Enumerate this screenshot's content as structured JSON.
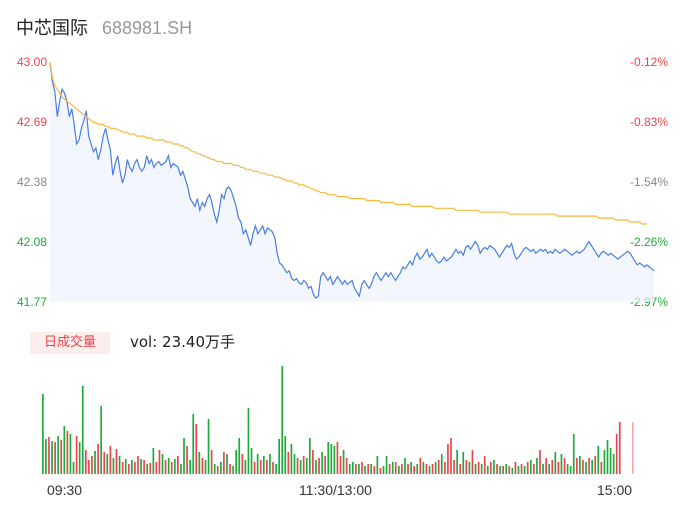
{
  "header": {
    "name": "中芯国际",
    "code": "688981.SH"
  },
  "volume": {
    "tab_label": "日成交量",
    "vol_prefix": "vol: ",
    "vol_value": "23.40万手"
  },
  "colors": {
    "price": "#4a7fe0",
    "avg": "#f5b942",
    "up": "#e8454f",
    "down": "#1faa3c",
    "neutral": "#888888"
  },
  "chart_data": {
    "type": "line",
    "y_left_ticks": [
      "43.00",
      "42.69",
      "42.38",
      "42.08",
      "41.77"
    ],
    "y_right_ticks": [
      "-0.12%",
      "-0.83%",
      "-1.54%",
      "-2.26%",
      "-2.97%"
    ],
    "y_tick_colors": [
      "up",
      "up",
      "neutral",
      "down",
      "down"
    ],
    "ylim": [
      41.77,
      43.0
    ],
    "x_ticks": [
      "09:30",
      "11:30/13:00",
      "15:00"
    ],
    "series": [
      {
        "key": "price",
        "values": [
          43.0,
          42.9,
          42.85,
          42.72,
          42.8,
          42.86,
          42.84,
          42.8,
          42.72,
          42.76,
          42.68,
          42.58,
          42.6,
          42.66,
          42.7,
          42.75,
          42.62,
          42.58,
          42.54,
          42.56,
          42.5,
          42.55,
          42.62,
          42.66,
          42.6,
          42.55,
          42.42,
          42.48,
          42.52,
          42.44,
          42.38,
          42.42,
          42.5,
          42.46,
          42.44,
          42.48,
          42.5,
          42.46,
          42.44,
          42.46,
          42.52,
          42.48,
          42.5,
          42.46,
          42.48,
          42.49,
          42.47,
          42.48,
          42.49,
          42.52,
          42.46,
          42.48,
          42.47,
          42.46,
          42.42,
          42.44,
          42.4,
          42.36,
          42.3,
          42.28,
          42.26,
          42.3,
          42.24,
          42.28,
          42.26,
          42.3,
          42.32,
          42.28,
          42.22,
          42.18,
          42.24,
          42.32,
          42.3,
          42.35,
          42.36,
          42.34,
          42.3,
          42.26,
          42.2,
          42.18,
          42.12,
          42.14,
          42.1,
          42.06,
          42.12,
          42.16,
          42.12,
          42.14,
          42.16,
          42.12,
          42.15,
          42.14,
          42.13,
          42.1,
          42.02,
          41.97,
          41.96,
          41.94,
          41.92,
          41.93,
          41.89,
          41.88,
          41.89,
          41.87,
          41.86,
          41.88,
          41.87,
          41.84,
          41.85,
          41.81,
          41.79,
          41.8,
          41.9,
          41.92,
          41.9,
          41.88,
          41.9,
          41.86,
          41.88,
          41.9,
          41.88,
          41.86,
          41.88,
          41.86,
          41.87,
          41.88,
          41.84,
          41.82,
          41.8,
          41.86,
          41.88,
          41.86,
          41.84,
          41.86,
          41.9,
          41.92,
          41.9,
          41.88,
          41.9,
          41.92,
          41.9,
          41.92,
          41.9,
          41.88,
          41.9,
          41.92,
          41.95,
          41.94,
          41.96,
          41.98,
          41.96,
          42.0,
          42.02,
          41.99,
          42.0,
          42.02,
          42.04,
          42.0,
          42.02,
          42.0,
          41.98,
          41.97,
          41.98,
          42.0,
          41.98,
          41.99,
          42.0,
          42.02,
          42.04,
          42.02,
          42.03,
          42.01,
          42.05,
          42.06,
          42.04,
          42.06,
          42.08,
          42.06,
          42.02,
          42.04,
          42.05,
          42.04,
          42.06,
          42.05,
          42.04,
          42.02,
          42.0,
          42.02,
          42.04,
          42.06,
          42.05,
          42.07,
          42.02,
          41.99,
          42.0,
          42.02,
          42.04,
          42.05,
          42.04,
          42.03,
          42.04,
          42.02,
          42.03,
          42.04,
          42.03,
          42.04,
          42.02,
          42.03,
          42.02,
          42.04,
          42.03,
          42.02,
          42.03,
          42.04,
          42.03,
          42.02,
          42.01,
          42.02,
          42.03,
          42.02,
          42.03,
          42.04,
          42.06,
          42.08,
          42.06,
          42.04,
          42.02,
          42.0,
          42.02,
          42.03,
          42.02,
          42.01,
          42.02,
          42.01,
          42.0,
          41.99,
          42.0,
          42.01,
          42.02,
          42.03,
          42.02,
          42.0,
          41.98,
          41.96,
          41.97,
          41.96,
          41.95,
          41.96,
          41.95,
          41.94,
          41.93
        ]
      },
      {
        "key": "avg",
        "values": [
          43.0,
          42.92,
          42.88,
          42.86,
          42.84,
          42.82,
          42.81,
          42.8,
          42.79,
          42.78,
          42.77,
          42.76,
          42.75,
          42.74,
          42.73,
          42.72,
          42.71,
          42.7,
          42.69,
          42.69,
          42.68,
          42.68,
          42.68,
          42.67,
          42.67,
          42.66,
          42.66,
          42.66,
          42.65,
          42.65,
          42.64,
          42.64,
          42.64,
          42.63,
          42.63,
          42.63,
          42.62,
          42.62,
          42.62,
          42.62,
          42.61,
          42.61,
          42.61,
          42.6,
          42.6,
          42.6,
          42.6,
          42.6,
          42.59,
          42.59,
          42.59,
          42.58,
          42.58,
          42.58,
          42.57,
          42.57,
          42.56,
          42.56,
          42.55,
          42.54,
          42.54,
          42.53,
          42.53,
          42.52,
          42.52,
          42.51,
          42.51,
          42.5,
          42.5,
          42.49,
          42.49,
          42.49,
          42.48,
          42.48,
          42.48,
          42.48,
          42.47,
          42.47,
          42.47,
          42.46,
          42.46,
          42.45,
          42.45,
          42.45,
          42.44,
          42.44,
          42.44,
          42.43,
          42.43,
          42.43,
          42.42,
          42.42,
          42.42,
          42.41,
          42.41,
          42.41,
          42.4,
          42.4,
          42.39,
          42.39,
          42.39,
          42.38,
          42.38,
          42.37,
          42.37,
          42.37,
          42.36,
          42.36,
          42.35,
          42.35,
          42.34,
          42.34,
          42.33,
          42.33,
          42.33,
          42.32,
          42.32,
          42.32,
          42.32,
          42.31,
          42.31,
          42.31,
          42.31,
          42.31,
          42.3,
          42.3,
          42.3,
          42.3,
          42.3,
          42.3,
          42.3,
          42.29,
          42.29,
          42.29,
          42.29,
          42.29,
          42.29,
          42.28,
          42.28,
          42.28,
          42.28,
          42.28,
          42.28,
          42.27,
          42.27,
          42.27,
          42.27,
          42.27,
          42.27,
          42.27,
          42.26,
          42.26,
          42.26,
          42.26,
          42.26,
          42.26,
          42.26,
          42.26,
          42.26,
          42.25,
          42.25,
          42.25,
          42.25,
          42.25,
          42.25,
          42.25,
          42.25,
          42.25,
          42.24,
          42.24,
          42.24,
          42.24,
          42.24,
          42.24,
          42.24,
          42.24,
          42.24,
          42.24,
          42.23,
          42.23,
          42.23,
          42.23,
          42.23,
          42.23,
          42.23,
          42.23,
          42.23,
          42.23,
          42.23,
          42.23,
          42.22,
          42.22,
          42.22,
          42.22,
          42.22,
          42.22,
          42.22,
          42.22,
          42.22,
          42.22,
          42.22,
          42.22,
          42.22,
          42.22,
          42.22,
          42.22,
          42.22,
          42.22,
          42.22,
          42.22,
          42.21,
          42.21,
          42.21,
          42.21,
          42.21,
          42.21,
          42.21,
          42.21,
          42.21,
          42.21,
          42.21,
          42.21,
          42.21,
          42.21,
          42.21,
          42.21,
          42.21,
          42.2,
          42.2,
          42.2,
          42.2,
          42.2,
          42.2,
          42.2,
          42.19,
          42.19,
          42.19,
          42.19,
          42.19,
          42.19,
          42.18,
          42.18,
          42.18,
          42.18,
          42.18,
          42.17,
          42.17,
          42.17
        ]
      }
    ],
    "volume_bars": [
      {
        "v": 80,
        "c": "down"
      },
      {
        "v": 35,
        "c": "down"
      },
      {
        "v": 37,
        "c": "up"
      },
      {
        "v": 33,
        "c": "down"
      },
      {
        "v": 32,
        "c": "up"
      },
      {
        "v": 38,
        "c": "down"
      },
      {
        "v": 34,
        "c": "up"
      },
      {
        "v": 48,
        "c": "down"
      },
      {
        "v": 43,
        "c": "up"
      },
      {
        "v": 40,
        "c": "down"
      },
      {
        "v": 12,
        "c": "down"
      },
      {
        "v": 38,
        "c": "up"
      },
      {
        "v": 32,
        "c": "down"
      },
      {
        "v": 88,
        "c": "down"
      },
      {
        "v": 24,
        "c": "up"
      },
      {
        "v": 14,
        "c": "up"
      },
      {
        "v": 18,
        "c": "up"
      },
      {
        "v": 23,
        "c": "down"
      },
      {
        "v": 30,
        "c": "up"
      },
      {
        "v": 68,
        "c": "down"
      },
      {
        "v": 22,
        "c": "up"
      },
      {
        "v": 20,
        "c": "down"
      },
      {
        "v": 28,
        "c": "up"
      },
      {
        "v": 16,
        "c": "down"
      },
      {
        "v": 25,
        "c": "up"
      },
      {
        "v": 18,
        "c": "down"
      },
      {
        "v": 12,
        "c": "up"
      },
      {
        "v": 15,
        "c": "down"
      },
      {
        "v": 10,
        "c": "up"
      },
      {
        "v": 14,
        "c": "down"
      },
      {
        "v": 12,
        "c": "up"
      },
      {
        "v": 18,
        "c": "up"
      },
      {
        "v": 15,
        "c": "down"
      },
      {
        "v": 14,
        "c": "up"
      },
      {
        "v": 10,
        "c": "down"
      },
      {
        "v": 11,
        "c": "up"
      },
      {
        "v": 26,
        "c": "down"
      },
      {
        "v": 12,
        "c": "up"
      },
      {
        "v": 24,
        "c": "up"
      },
      {
        "v": 20,
        "c": "down"
      },
      {
        "v": 14,
        "c": "up"
      },
      {
        "v": 16,
        "c": "down"
      },
      {
        "v": 12,
        "c": "up"
      },
      {
        "v": 15,
        "c": "down"
      },
      {
        "v": 18,
        "c": "up"
      },
      {
        "v": 10,
        "c": "down"
      },
      {
        "v": 36,
        "c": "down"
      },
      {
        "v": 28,
        "c": "up"
      },
      {
        "v": 14,
        "c": "down"
      },
      {
        "v": 60,
        "c": "down"
      },
      {
        "v": 50,
        "c": "up"
      },
      {
        "v": 22,
        "c": "down"
      },
      {
        "v": 16,
        "c": "up"
      },
      {
        "v": 14,
        "c": "down"
      },
      {
        "v": 55,
        "c": "down"
      },
      {
        "v": 24,
        "c": "up"
      },
      {
        "v": 10,
        "c": "down"
      },
      {
        "v": 8,
        "c": "up"
      },
      {
        "v": 12,
        "c": "down"
      },
      {
        "v": 22,
        "c": "up"
      },
      {
        "v": 20,
        "c": "down"
      },
      {
        "v": 10,
        "c": "up"
      },
      {
        "v": 8,
        "c": "down"
      },
      {
        "v": 24,
        "c": "down"
      },
      {
        "v": 36,
        "c": "down"
      },
      {
        "v": 20,
        "c": "up"
      },
      {
        "v": 14,
        "c": "down"
      },
      {
        "v": 66,
        "c": "down"
      },
      {
        "v": 26,
        "c": "down"
      },
      {
        "v": 12,
        "c": "up"
      },
      {
        "v": 20,
        "c": "down"
      },
      {
        "v": 14,
        "c": "up"
      },
      {
        "v": 18,
        "c": "down"
      },
      {
        "v": 14,
        "c": "up"
      },
      {
        "v": 20,
        "c": "down"
      },
      {
        "v": 12,
        "c": "up"
      },
      {
        "v": 10,
        "c": "down"
      },
      {
        "v": 35,
        "c": "down"
      },
      {
        "v": 108,
        "c": "down"
      },
      {
        "v": 38,
        "c": "down"
      },
      {
        "v": 22,
        "c": "up"
      },
      {
        "v": 30,
        "c": "down"
      },
      {
        "v": 20,
        "c": "down"
      },
      {
        "v": 16,
        "c": "up"
      },
      {
        "v": 14,
        "c": "down"
      },
      {
        "v": 18,
        "c": "up"
      },
      {
        "v": 16,
        "c": "down"
      },
      {
        "v": 36,
        "c": "down"
      },
      {
        "v": 24,
        "c": "up"
      },
      {
        "v": 14,
        "c": "down"
      },
      {
        "v": 16,
        "c": "up"
      },
      {
        "v": 22,
        "c": "down"
      },
      {
        "v": 18,
        "c": "up"
      },
      {
        "v": 32,
        "c": "down"
      },
      {
        "v": 30,
        "c": "down"
      },
      {
        "v": 28,
        "c": "down"
      },
      {
        "v": 32,
        "c": "up"
      },
      {
        "v": 18,
        "c": "up"
      },
      {
        "v": 24,
        "c": "down"
      },
      {
        "v": 16,
        "c": "up"
      },
      {
        "v": 10,
        "c": "down"
      },
      {
        "v": 12,
        "c": "down"
      },
      {
        "v": 10,
        "c": "up"
      },
      {
        "v": 10,
        "c": "down"
      },
      {
        "v": 12,
        "c": "up"
      },
      {
        "v": 8,
        "c": "down"
      },
      {
        "v": 10,
        "c": "up"
      },
      {
        "v": 10,
        "c": "down"
      },
      {
        "v": 8,
        "c": "up"
      },
      {
        "v": 18,
        "c": "down"
      },
      {
        "v": 6,
        "c": "up"
      },
      {
        "v": 8,
        "c": "down"
      },
      {
        "v": 18,
        "c": "down"
      },
      {
        "v": 10,
        "c": "up"
      },
      {
        "v": 12,
        "c": "down"
      },
      {
        "v": 12,
        "c": "up"
      },
      {
        "v": 8,
        "c": "down"
      },
      {
        "v": 10,
        "c": "up"
      },
      {
        "v": 16,
        "c": "down"
      },
      {
        "v": 10,
        "c": "up"
      },
      {
        "v": 12,
        "c": "down"
      },
      {
        "v": 8,
        "c": "up"
      },
      {
        "v": 10,
        "c": "down"
      },
      {
        "v": 16,
        "c": "up"
      },
      {
        "v": 12,
        "c": "down"
      },
      {
        "v": 10,
        "c": "up"
      },
      {
        "v": 8,
        "c": "down"
      },
      {
        "v": 10,
        "c": "up"
      },
      {
        "v": 12,
        "c": "down"
      },
      {
        "v": 14,
        "c": "up"
      },
      {
        "v": 20,
        "c": "down"
      },
      {
        "v": 12,
        "c": "up"
      },
      {
        "v": 30,
        "c": "up"
      },
      {
        "v": 36,
        "c": "up"
      },
      {
        "v": 14,
        "c": "up"
      },
      {
        "v": 24,
        "c": "down"
      },
      {
        "v": 10,
        "c": "up"
      },
      {
        "v": 22,
        "c": "down"
      },
      {
        "v": 14,
        "c": "up"
      },
      {
        "v": 12,
        "c": "down"
      },
      {
        "v": 24,
        "c": "up"
      },
      {
        "v": 10,
        "c": "down"
      },
      {
        "v": 12,
        "c": "up"
      },
      {
        "v": 10,
        "c": "down"
      },
      {
        "v": 18,
        "c": "up"
      },
      {
        "v": 8,
        "c": "down"
      },
      {
        "v": 12,
        "c": "up"
      },
      {
        "v": 14,
        "c": "down"
      },
      {
        "v": 10,
        "c": "up"
      },
      {
        "v": 8,
        "c": "down"
      },
      {
        "v": 8,
        "c": "up"
      },
      {
        "v": 10,
        "c": "down"
      },
      {
        "v": 8,
        "c": "up"
      },
      {
        "v": 6,
        "c": "down"
      },
      {
        "v": 12,
        "c": "up"
      },
      {
        "v": 8,
        "c": "down"
      },
      {
        "v": 10,
        "c": "up"
      },
      {
        "v": 8,
        "c": "down"
      },
      {
        "v": 12,
        "c": "up"
      },
      {
        "v": 14,
        "c": "down"
      },
      {
        "v": 10,
        "c": "up"
      },
      {
        "v": 16,
        "c": "down"
      },
      {
        "v": 24,
        "c": "up"
      },
      {
        "v": 10,
        "c": "down"
      },
      {
        "v": 16,
        "c": "up"
      },
      {
        "v": 10,
        "c": "down"
      },
      {
        "v": 14,
        "c": "up"
      },
      {
        "v": 22,
        "c": "down"
      },
      {
        "v": 12,
        "c": "up"
      },
      {
        "v": 20,
        "c": "down"
      },
      {
        "v": 16,
        "c": "up"
      },
      {
        "v": 10,
        "c": "down"
      },
      {
        "v": 8,
        "c": "down"
      },
      {
        "v": 40,
        "c": "down"
      },
      {
        "v": 16,
        "c": "up"
      },
      {
        "v": 18,
        "c": "down"
      },
      {
        "v": 14,
        "c": "up"
      },
      {
        "v": 12,
        "c": "down"
      },
      {
        "v": 16,
        "c": "up"
      },
      {
        "v": 14,
        "c": "down"
      },
      {
        "v": 18,
        "c": "up"
      },
      {
        "v": 28,
        "c": "down"
      },
      {
        "v": 12,
        "c": "up"
      },
      {
        "v": 24,
        "c": "down"
      },
      {
        "v": 34,
        "c": "down"
      },
      {
        "v": 26,
        "c": "down"
      },
      {
        "v": 20,
        "c": "down"
      },
      {
        "v": 40,
        "c": "up"
      },
      {
        "v": 52,
        "c": "up"
      }
    ]
  }
}
